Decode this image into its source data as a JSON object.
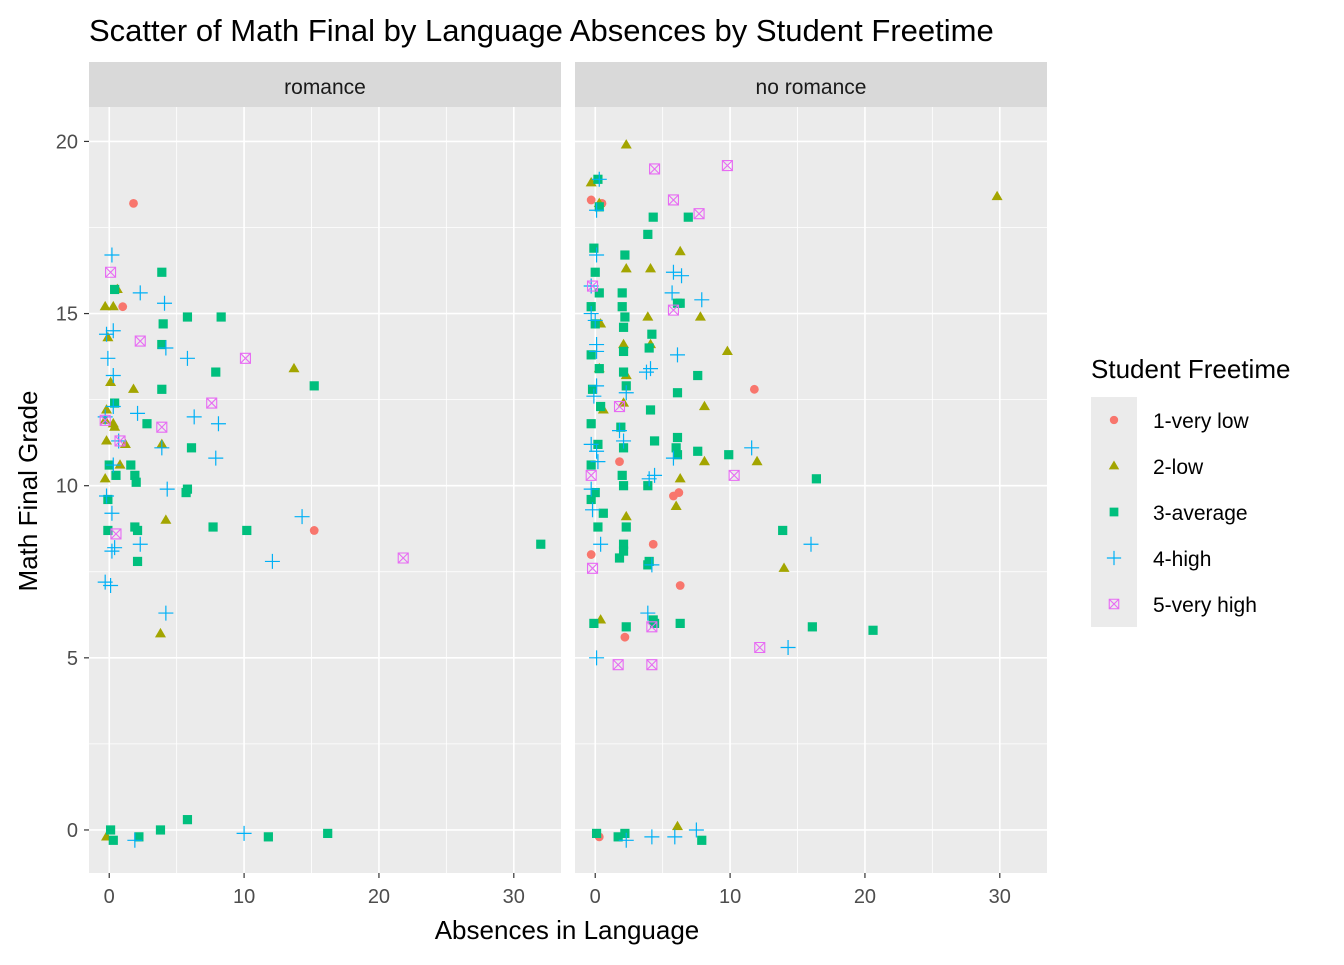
{
  "chart_data": {
    "type": "scatter",
    "title": "Scatter of Math Final by Language Absences by Student Freetime",
    "xlabel": "Absences in Language",
    "ylabel": "Math Final Grade",
    "xlim": [
      -1.5,
      33.5
    ],
    "ylim": [
      -1.25,
      21.0
    ],
    "x_ticks": [
      0,
      10,
      20,
      30
    ],
    "y_ticks": [
      0,
      5,
      10,
      15,
      20
    ],
    "grid": true,
    "facets": [
      "romance",
      "no romance"
    ],
    "legend": {
      "title": "Student Freetime",
      "placement": "right",
      "entries": [
        {
          "key": "1",
          "label": "1-very low",
          "color": "#F8766D",
          "shape": "circle"
        },
        {
          "key": "2",
          "label": "2-low",
          "color": "#A3A500",
          "shape": "triangle"
        },
        {
          "key": "3",
          "label": "3-average",
          "color": "#00BF7D",
          "shape": "square"
        },
        {
          "key": "4",
          "label": "4-high",
          "color": "#00B0F6",
          "shape": "plus"
        },
        {
          "key": "5",
          "label": "5-very high",
          "color": "#E76BF3",
          "shape": "boxcross"
        }
      ]
    },
    "series": {
      "romance": {
        "1": [
          [
            1.8,
            18.2
          ],
          [
            1.0,
            15.2
          ],
          [
            15.2,
            8.7
          ]
        ],
        "2": [
          [
            0.6,
            15.7
          ],
          [
            0.3,
            15.2
          ],
          [
            -0.3,
            15.2
          ],
          [
            -0.1,
            14.3
          ],
          [
            -0.2,
            12.2
          ],
          [
            -0.3,
            11.9
          ],
          [
            0.1,
            13.0
          ],
          [
            0.3,
            11.8
          ],
          [
            0.4,
            11.7
          ],
          [
            -0.2,
            11.3
          ],
          [
            0.8,
            10.6
          ],
          [
            1.2,
            11.2
          ],
          [
            -0.3,
            10.2
          ],
          [
            1.8,
            12.8
          ],
          [
            13.7,
            13.4
          ],
          [
            3.9,
            11.2
          ],
          [
            4.2,
            9.0
          ],
          [
            3.8,
            5.7
          ],
          [
            -0.2,
            -0.2
          ]
        ],
        "3": [
          [
            0.4,
            15.7
          ],
          [
            0.4,
            12.4
          ],
          [
            0.0,
            10.6
          ],
          [
            0.5,
            10.3
          ],
          [
            -0.1,
            9.6
          ],
          [
            -0.1,
            8.7
          ],
          [
            1.6,
            10.6
          ],
          [
            1.9,
            10.3
          ],
          [
            2.0,
            10.1
          ],
          [
            2.8,
            11.8
          ],
          [
            1.9,
            8.8
          ],
          [
            2.1,
            8.7
          ],
          [
            2.1,
            7.8
          ],
          [
            3.9,
            16.2
          ],
          [
            4.0,
            14.7
          ],
          [
            3.9,
            14.1
          ],
          [
            3.9,
            12.8
          ],
          [
            5.8,
            14.9
          ],
          [
            8.3,
            14.9
          ],
          [
            7.9,
            13.3
          ],
          [
            6.1,
            11.1
          ],
          [
            5.8,
            9.9
          ],
          [
            5.7,
            9.8
          ],
          [
            7.7,
            8.8
          ],
          [
            10.2,
            8.7
          ],
          [
            15.2,
            12.9
          ],
          [
            32.0,
            8.3
          ],
          [
            0.1,
            0.0
          ],
          [
            0.3,
            -0.3
          ],
          [
            2.2,
            -0.2
          ],
          [
            3.8,
            0.0
          ],
          [
            5.8,
            0.3
          ],
          [
            11.8,
            -0.2
          ],
          [
            16.2,
            -0.1
          ]
        ],
        "4": [
          [
            0.2,
            16.7
          ],
          [
            -0.2,
            14.4
          ],
          [
            0.3,
            14.5
          ],
          [
            -0.1,
            13.7
          ],
          [
            0.3,
            13.2
          ],
          [
            -0.3,
            12.0
          ],
          [
            0.3,
            12.3
          ],
          [
            0.7,
            11.3
          ],
          [
            0.3,
            10.6
          ],
          [
            -0.2,
            9.7
          ],
          [
            0.2,
            9.2
          ],
          [
            0.2,
            8.1
          ],
          [
            0.4,
            8.2
          ],
          [
            -0.3,
            7.2
          ],
          [
            0.1,
            7.1
          ],
          [
            2.3,
            15.6
          ],
          [
            4.1,
            15.3
          ],
          [
            4.2,
            14.0
          ],
          [
            5.8,
            13.7
          ],
          [
            6.3,
            12.0
          ],
          [
            2.1,
            12.1
          ],
          [
            3.9,
            11.1
          ],
          [
            8.1,
            11.8
          ],
          [
            4.3,
            9.9
          ],
          [
            7.9,
            10.8
          ],
          [
            2.3,
            8.3
          ],
          [
            4.2,
            6.3
          ],
          [
            12.1,
            7.8
          ],
          [
            14.3,
            9.1
          ],
          [
            1.9,
            -0.3
          ],
          [
            10.0,
            -0.1
          ]
        ],
        "5": [
          [
            0.1,
            16.2
          ],
          [
            2.3,
            14.2
          ],
          [
            10.1,
            13.7
          ],
          [
            7.6,
            12.4
          ],
          [
            3.9,
            11.7
          ],
          [
            -0.3,
            11.9
          ],
          [
            0.8,
            11.3
          ],
          [
            0.5,
            8.6
          ],
          [
            21.8,
            7.9
          ]
        ]
      },
      "no romance": {
        "1": [
          [
            -0.3,
            18.3
          ],
          [
            0.5,
            18.2
          ],
          [
            11.8,
            12.8
          ],
          [
            1.8,
            10.7
          ],
          [
            5.8,
            9.7
          ],
          [
            6.2,
            9.8
          ],
          [
            4.3,
            8.3
          ],
          [
            -0.3,
            8.0
          ],
          [
            6.3,
            7.1
          ],
          [
            2.2,
            5.6
          ],
          [
            0.3,
            -0.2
          ]
        ],
        "2": [
          [
            2.3,
            19.9
          ],
          [
            29.8,
            18.4
          ],
          [
            -0.3,
            18.8
          ],
          [
            0.3,
            18.2
          ],
          [
            6.3,
            16.8
          ],
          [
            2.3,
            16.3
          ],
          [
            4.1,
            16.3
          ],
          [
            3.9,
            14.9
          ],
          [
            4.1,
            14.1
          ],
          [
            2.1,
            14.1
          ],
          [
            0.4,
            14.7
          ],
          [
            7.8,
            14.9
          ],
          [
            9.8,
            13.9
          ],
          [
            0.3,
            13.4
          ],
          [
            2.3,
            13.2
          ],
          [
            2.1,
            12.4
          ],
          [
            8.1,
            12.3
          ],
          [
            0.6,
            12.2
          ],
          [
            8.1,
            10.7
          ],
          [
            12.0,
            10.7
          ],
          [
            6.3,
            10.2
          ],
          [
            6.0,
            9.4
          ],
          [
            2.3,
            9.1
          ],
          [
            14.0,
            7.6
          ],
          [
            0.4,
            6.1
          ],
          [
            6.1,
            0.1
          ]
        ],
        "3": [
          [
            0.2,
            18.9
          ],
          [
            0.3,
            18.1
          ],
          [
            4.3,
            17.8
          ],
          [
            6.9,
            17.8
          ],
          [
            3.9,
            17.3
          ],
          [
            -0.1,
            16.9
          ],
          [
            2.2,
            16.7
          ],
          [
            0.0,
            16.2
          ],
          [
            0.3,
            15.6
          ],
          [
            2.0,
            15.6
          ],
          [
            -0.3,
            15.2
          ],
          [
            0.0,
            14.7
          ],
          [
            2.0,
            15.2
          ],
          [
            2.2,
            14.9
          ],
          [
            2.1,
            14.6
          ],
          [
            6.1,
            15.3
          ],
          [
            6.3,
            15.3
          ],
          [
            -0.3,
            13.8
          ],
          [
            0.3,
            13.4
          ],
          [
            2.1,
            13.9
          ],
          [
            4.2,
            14.4
          ],
          [
            4.0,
            14.0
          ],
          [
            2.1,
            13.3
          ],
          [
            7.6,
            13.2
          ],
          [
            -0.2,
            12.8
          ],
          [
            0.4,
            12.3
          ],
          [
            2.3,
            12.9
          ],
          [
            4.1,
            12.2
          ],
          [
            6.1,
            12.7
          ],
          [
            -0.3,
            11.8
          ],
          [
            0.2,
            11.2
          ],
          [
            1.9,
            11.7
          ],
          [
            2.1,
            11.1
          ],
          [
            4.4,
            11.3
          ],
          [
            6.1,
            11.4
          ],
          [
            6.0,
            11.1
          ],
          [
            7.6,
            11.0
          ],
          [
            9.9,
            10.9
          ],
          [
            16.4,
            10.2
          ],
          [
            -0.3,
            10.6
          ],
          [
            0.0,
            9.8
          ],
          [
            -0.3,
            9.6
          ],
          [
            0.6,
            9.2
          ],
          [
            2.0,
            10.3
          ],
          [
            2.1,
            10.0
          ],
          [
            3.9,
            10.0
          ],
          [
            6.1,
            10.9
          ],
          [
            0.2,
            8.8
          ],
          [
            2.3,
            8.8
          ],
          [
            2.1,
            8.3
          ],
          [
            1.8,
            7.9
          ],
          [
            2.1,
            8.1
          ],
          [
            4.0,
            7.8
          ],
          [
            3.9,
            7.7
          ],
          [
            -0.1,
            6.0
          ],
          [
            2.3,
            5.9
          ],
          [
            4.3,
            6.1
          ],
          [
            4.4,
            6.0
          ],
          [
            6.3,
            6.0
          ],
          [
            13.9,
            8.7
          ],
          [
            16.1,
            5.9
          ],
          [
            20.6,
            5.8
          ],
          [
            0.1,
            -0.1
          ],
          [
            1.7,
            -0.2
          ],
          [
            2.2,
            -0.1
          ],
          [
            7.9,
            -0.3
          ]
        ],
        "4": [
          [
            0.3,
            18.9
          ],
          [
            0.1,
            18.0
          ],
          [
            0.1,
            16.7
          ],
          [
            5.8,
            16.2
          ],
          [
            6.4,
            16.1
          ],
          [
            -0.3,
            15.8
          ],
          [
            5.7,
            15.6
          ],
          [
            -0.3,
            15.0
          ],
          [
            0.0,
            14.8
          ],
          [
            0.1,
            14.1
          ],
          [
            0.1,
            13.9
          ],
          [
            7.9,
            15.4
          ],
          [
            6.1,
            13.8
          ],
          [
            0.1,
            12.9
          ],
          [
            -0.1,
            12.6
          ],
          [
            3.8,
            13.3
          ],
          [
            4.1,
            13.4
          ],
          [
            2.3,
            12.7
          ],
          [
            1.8,
            11.6
          ],
          [
            -0.3,
            11.2
          ],
          [
            0.1,
            11.0
          ],
          [
            2.1,
            11.3
          ],
          [
            0.2,
            10.7
          ],
          [
            5.8,
            10.8
          ],
          [
            11.6,
            11.1
          ],
          [
            -0.3,
            9.9
          ],
          [
            4.0,
            10.2
          ],
          [
            4.4,
            10.3
          ],
          [
            -0.2,
            9.3
          ],
          [
            0.4,
            8.3
          ],
          [
            4.2,
            7.7
          ],
          [
            3.9,
            6.3
          ],
          [
            16.0,
            8.3
          ],
          [
            0.1,
            5.0
          ],
          [
            14.3,
            5.3
          ],
          [
            2.3,
            -0.3
          ],
          [
            4.2,
            -0.2
          ],
          [
            5.9,
            -0.2
          ],
          [
            7.5,
            0.0
          ]
        ],
        "5": [
          [
            4.4,
            19.2
          ],
          [
            9.8,
            19.3
          ],
          [
            5.8,
            18.3
          ],
          [
            7.7,
            17.9
          ],
          [
            -0.2,
            15.8
          ],
          [
            5.8,
            15.1
          ],
          [
            1.8,
            12.3
          ],
          [
            -0.3,
            10.3
          ],
          [
            10.3,
            10.3
          ],
          [
            -0.2,
            7.6
          ],
          [
            1.7,
            4.8
          ],
          [
            4.2,
            4.8
          ],
          [
            12.2,
            5.3
          ],
          [
            4.2,
            5.9
          ]
        ]
      }
    }
  }
}
